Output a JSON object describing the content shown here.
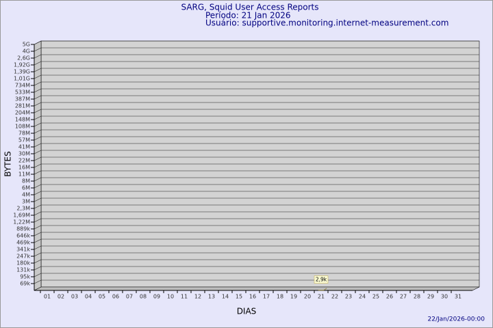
{
  "chart_data": {
    "type": "bar",
    "title": "SARG, Squid User Access Reports",
    "subtitle": [
      "Período: 21 Jan 2026",
      "Usuário: supportive.monitoring.internet-measurement.com"
    ],
    "x_label": "DIAS",
    "y_label": "BYTES",
    "footer": "22/Jan/2026-00:00",
    "categories": [
      "01",
      "02",
      "03",
      "04",
      "05",
      "06",
      "07",
      "08",
      "09",
      "10",
      "11",
      "12",
      "13",
      "14",
      "15",
      "16",
      "17",
      "18",
      "19",
      "20",
      "21",
      "22",
      "23",
      "24",
      "25",
      "26",
      "27",
      "28",
      "29",
      "30",
      "31"
    ],
    "values": [
      null,
      null,
      null,
      null,
      null,
      null,
      null,
      null,
      null,
      null,
      null,
      null,
      null,
      null,
      null,
      null,
      null,
      null,
      null,
      null,
      2900,
      null,
      null,
      null,
      null,
      null,
      null,
      null,
      null,
      null,
      null
    ],
    "value_labels": [
      null,
      null,
      null,
      null,
      null,
      null,
      null,
      null,
      null,
      null,
      null,
      null,
      null,
      null,
      null,
      null,
      null,
      null,
      null,
      null,
      "2,9k",
      null,
      null,
      null,
      null,
      null,
      null,
      null,
      null,
      null,
      null
    ],
    "color": "#f0e68c",
    "ylim": [
      0,
      5000000000
    ],
    "yticks": [
      {
        "value": 5000000000,
        "label": "5G"
      },
      {
        "value": 4000000000,
        "label": "4G"
      },
      {
        "value": 2600000000,
        "label": "2,6G"
      },
      {
        "value": 1920000000,
        "label": "1,92G"
      },
      {
        "value": 1390000000,
        "label": "1,39G"
      },
      {
        "value": 1010000000,
        "label": "1,01G"
      },
      {
        "value": 734000000,
        "label": "734M"
      },
      {
        "value": 533000000,
        "label": "533M"
      },
      {
        "value": 387000000,
        "label": "387M"
      },
      {
        "value": 281000000,
        "label": "281M"
      },
      {
        "value": 204000000,
        "label": "204M"
      },
      {
        "value": 148000000,
        "label": "148M"
      },
      {
        "value": 108000000,
        "label": "108M"
      },
      {
        "value": 78000000,
        "label": "78M"
      },
      {
        "value": 57000000,
        "label": "57M"
      },
      {
        "value": 41000000,
        "label": "41M"
      },
      {
        "value": 30000000,
        "label": "30M"
      },
      {
        "value": 22000000,
        "label": "22M"
      },
      {
        "value": 16000000,
        "label": "16M"
      },
      {
        "value": 11000000,
        "label": "11M"
      },
      {
        "value": 8000000,
        "label": "8M"
      },
      {
        "value": 6000000,
        "label": "6M"
      },
      {
        "value": 4000000,
        "label": "4M"
      },
      {
        "value": 3000000,
        "label": "3M"
      },
      {
        "value": 2300000,
        "label": "2,3M"
      },
      {
        "value": 1690000,
        "label": "1,69M"
      },
      {
        "value": 1220000,
        "label": "1,22M"
      },
      {
        "value": 889000,
        "label": "889k"
      },
      {
        "value": 646000,
        "label": "646k"
      },
      {
        "value": 469000,
        "label": "469k"
      },
      {
        "value": 341000,
        "label": "341k"
      },
      {
        "value": 247000,
        "label": "247k"
      },
      {
        "value": 180000,
        "label": "180k"
      },
      {
        "value": 131000,
        "label": "131k"
      },
      {
        "value": 95000,
        "label": "95k"
      },
      {
        "value": 69000,
        "label": "69k"
      }
    ],
    "grid": true
  }
}
